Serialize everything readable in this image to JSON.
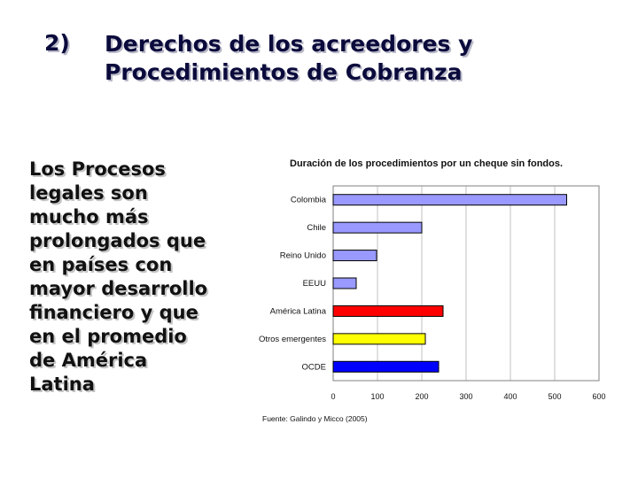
{
  "slide": {
    "number": "2)",
    "title_line1": "Derechos de los acreedores y",
    "title_line2": "Procedimientos de Cobranza",
    "body_lines": [
      "Los Procesos",
      "legales son",
      "mucho más",
      "prolongados que",
      "en países con",
      "mayor desarrollo",
      "financiero y que",
      "en el promedio",
      "de América",
      "Latina"
    ]
  },
  "chart_data": {
    "type": "bar",
    "orientation": "horizontal",
    "title": "Duración de los procedimientos por un cheque sin fondos.",
    "categories": [
      "Colombia",
      "Chile",
      "Reino Unido",
      "EEUU",
      "América Latina",
      "Otros emergentes",
      "OCDE"
    ],
    "values": [
      527,
      200,
      98,
      52,
      248,
      208,
      238
    ],
    "colors": [
      "#9999ff",
      "#9999ff",
      "#9999ff",
      "#9999ff",
      "#ff0000",
      "#ffff00",
      "#0000ff"
    ],
    "xlim": [
      0,
      600
    ],
    "xticks": [
      "0",
      "100",
      "200",
      "300",
      "400",
      "500",
      "600"
    ],
    "grid": true,
    "source": "Fuente: Galindo y Micco (2005)"
  }
}
